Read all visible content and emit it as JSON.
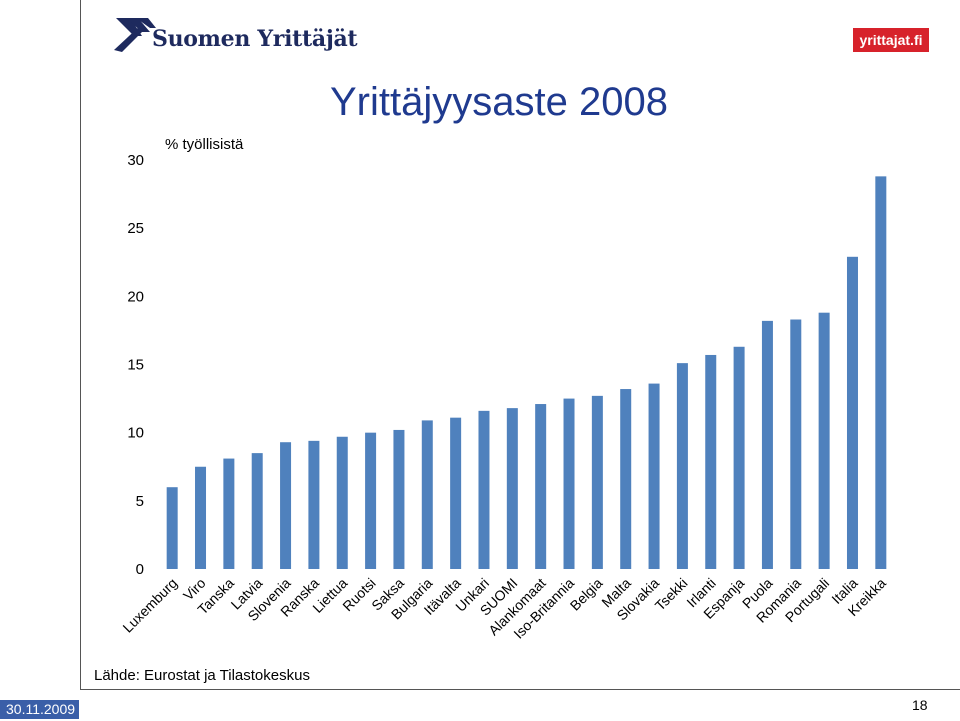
{
  "header": {
    "logo_text": "Suomen Yrittäjät",
    "badge_text": "yrittajat.fi"
  },
  "footer": {
    "source": "Lähde: Eurostat ja Tilastokeskus",
    "date": "30.11.2009",
    "page_number": "18"
  },
  "chart_data": {
    "type": "bar",
    "title": "Yrittäjyysaste 2008",
    "ylabel": "% työllisistä",
    "xlabel": "",
    "ylim": [
      0,
      30
    ],
    "yticks": [
      0,
      5,
      10,
      15,
      20,
      25,
      30
    ],
    "grid": false,
    "bar_color": "#4f81bd",
    "categories": [
      "Luxemburg",
      "Viro",
      "Tanska",
      "Latvia",
      "Slovenia",
      "Ranska",
      "Liettua",
      "Ruotsi",
      "Saksa",
      "Bulgaria",
      "Itävalta",
      "Unkari",
      "SUOMI",
      "Alankomaat",
      "Iso-Britannia",
      "Belgia",
      "Malta",
      "Slovakia",
      "Tsekki",
      "Irlanti",
      "Espanja",
      "Puola",
      "Romania",
      "Portugali",
      "Italia",
      "Kreikka"
    ],
    "values": [
      6.0,
      7.5,
      8.1,
      8.5,
      9.3,
      9.4,
      9.7,
      10.0,
      10.2,
      10.9,
      11.1,
      11.6,
      11.8,
      12.1,
      12.5,
      12.7,
      13.2,
      13.6,
      15.1,
      15.7,
      16.3,
      18.2,
      18.3,
      18.8,
      22.9,
      28.8
    ]
  }
}
